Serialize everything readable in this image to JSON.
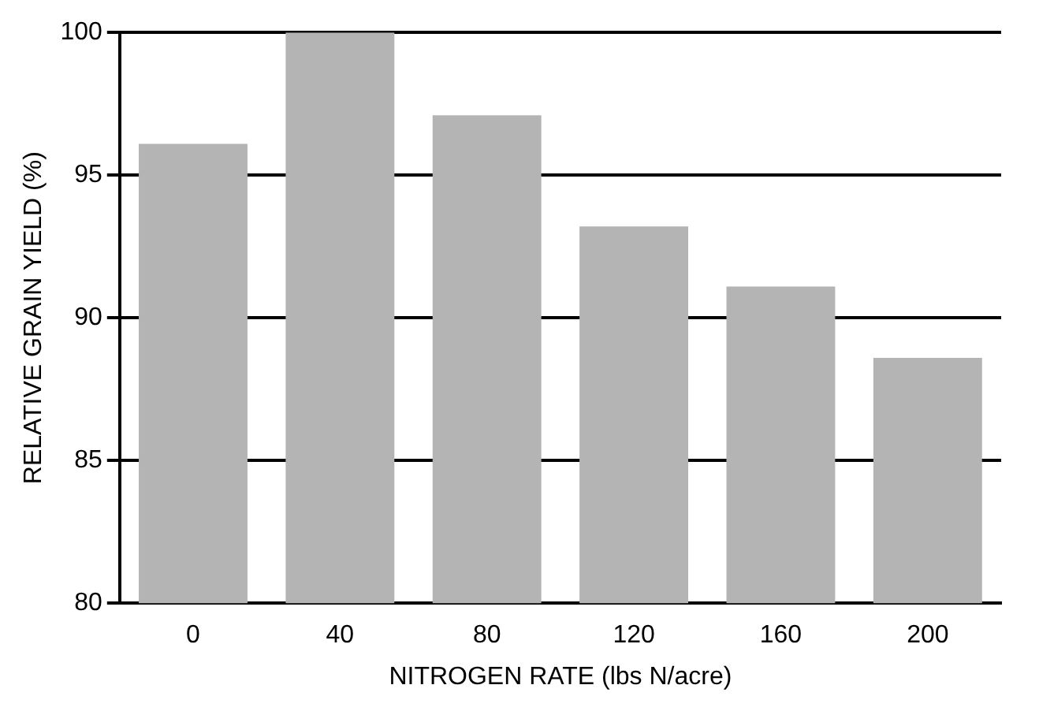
{
  "chart_data": {
    "type": "bar",
    "xlabel": "NITROGEN RATE (lbs N/acre)",
    "ylabel": "RELATIVE GRAIN YIELD (%)",
    "categories": [
      "0",
      "40",
      "80",
      "120",
      "160",
      "200"
    ],
    "values": [
      96.1,
      100,
      97.1,
      93.2,
      91.1,
      88.6
    ],
    "color": "#b4b4b4",
    "ylim": [
      80,
      100
    ],
    "yticks": [
      80,
      85,
      90,
      95,
      100
    ],
    "grid": "y"
  }
}
